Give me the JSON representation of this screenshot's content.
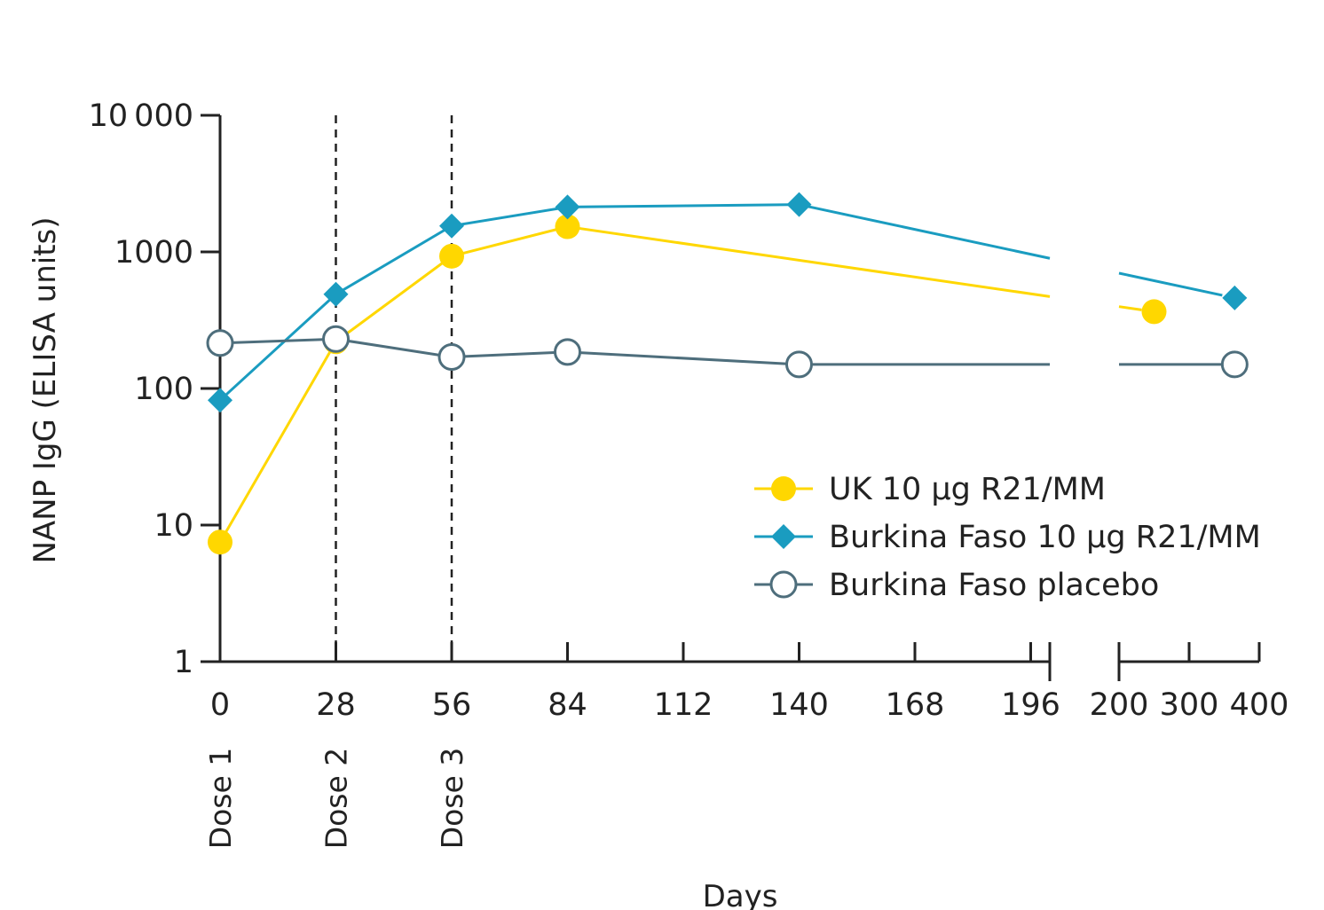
{
  "chart_data": {
    "type": "line",
    "title": "",
    "xlabel": "Days",
    "ylabel": "NANP IgG (ELISA units)",
    "yscale": "log",
    "ylim": [
      1,
      10000
    ],
    "y_ticks": [
      {
        "value": 1,
        "label": "1"
      },
      {
        "value": 10,
        "label": "10"
      },
      {
        "value": 100,
        "label": "100"
      },
      {
        "value": 1000,
        "label": "1000"
      },
      {
        "value": 10000,
        "label": "10 000"
      }
    ],
    "x_axis_broken": true,
    "x_ticks_linear": [
      0,
      28,
      56,
      84,
      112,
      140,
      168,
      196
    ],
    "x_ticks_after_break": [
      200,
      300,
      400
    ],
    "vertical_markers": [
      {
        "x": 0,
        "label": "Dose 1",
        "dashed": false
      },
      {
        "x": 28,
        "label": "Dose 2",
        "dashed": true
      },
      {
        "x": 56,
        "label": "Dose 3",
        "dashed": true
      }
    ],
    "legend_position": "right",
    "series": [
      {
        "name": "UK 10 μg R21/MM",
        "color": "#FFD700",
        "marker": "filled-circle",
        "points": [
          {
            "x": 0,
            "y": 7.5
          },
          {
            "x": 28,
            "y": 220
          },
          {
            "x": 56,
            "y": 930
          },
          {
            "x": 84,
            "y": 1530
          },
          {
            "x": 250,
            "y": 365
          }
        ]
      },
      {
        "name": "Burkina Faso 10 μg R21/MM",
        "color": "#1A9CC0",
        "marker": "filled-diamond",
        "points": [
          {
            "x": 0,
            "y": 82
          },
          {
            "x": 28,
            "y": 490
          },
          {
            "x": 56,
            "y": 1550
          },
          {
            "x": 84,
            "y": 2130
          },
          {
            "x": 140,
            "y": 2220
          },
          {
            "x": 365,
            "y": 460
          }
        ]
      },
      {
        "name": "Burkina Faso placebo",
        "color": "#4E6E7C",
        "marker": "open-circle",
        "points": [
          {
            "x": 0,
            "y": 215
          },
          {
            "x": 28,
            "y": 230
          },
          {
            "x": 56,
            "y": 170
          },
          {
            "x": 84,
            "y": 185
          },
          {
            "x": 140,
            "y": 150
          },
          {
            "x": 365,
            "y": 150
          }
        ]
      }
    ]
  }
}
